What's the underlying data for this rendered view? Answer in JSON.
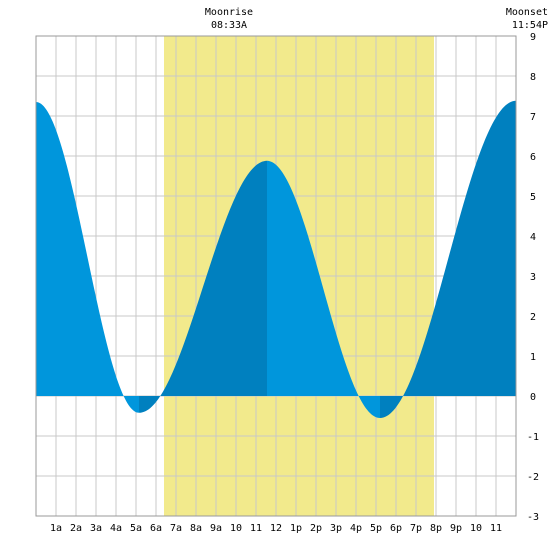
{
  "chart_data": {
    "type": "area",
    "ylim": [
      -3,
      9
    ],
    "y_ticks": [
      -3,
      -2,
      -1,
      0,
      1,
      2,
      3,
      4,
      5,
      6,
      7,
      8,
      9
    ],
    "x_range_hours": [
      0,
      24
    ],
    "x_tick_labels": [
      "1a",
      "2a",
      "3a",
      "4a",
      "5a",
      "6a",
      "7a",
      "8a",
      "9a",
      "10",
      "11",
      "12",
      "1p",
      "2p",
      "3p",
      "4p",
      "5p",
      "6p",
      "7p",
      "8p",
      "9p",
      "10",
      "11"
    ],
    "grid": true,
    "daylight": {
      "start_hour": 6.4,
      "end_hour": 19.9
    },
    "tide_extremes": [
      {
        "hour": 0.0,
        "height": 7.35
      },
      {
        "hour": 5.15,
        "height": -0.42
      },
      {
        "hour": 11.55,
        "height": 5.88
      },
      {
        "hour": 17.2,
        "height": -0.55
      },
      {
        "hour": 24.0,
        "height": 7.38
      }
    ],
    "moonrise": {
      "label": "Moonrise",
      "time": "08:33A",
      "hour": 8.55
    },
    "moonset": {
      "label": "Moonset",
      "time": "11:54P",
      "hour": 23.9
    },
    "colors": {
      "daylight": "#f2ea8c",
      "tide_light": "#0096dc",
      "tide_dark": "#0080bf",
      "grid": "#c8c8c8",
      "frame": "#999999"
    }
  }
}
